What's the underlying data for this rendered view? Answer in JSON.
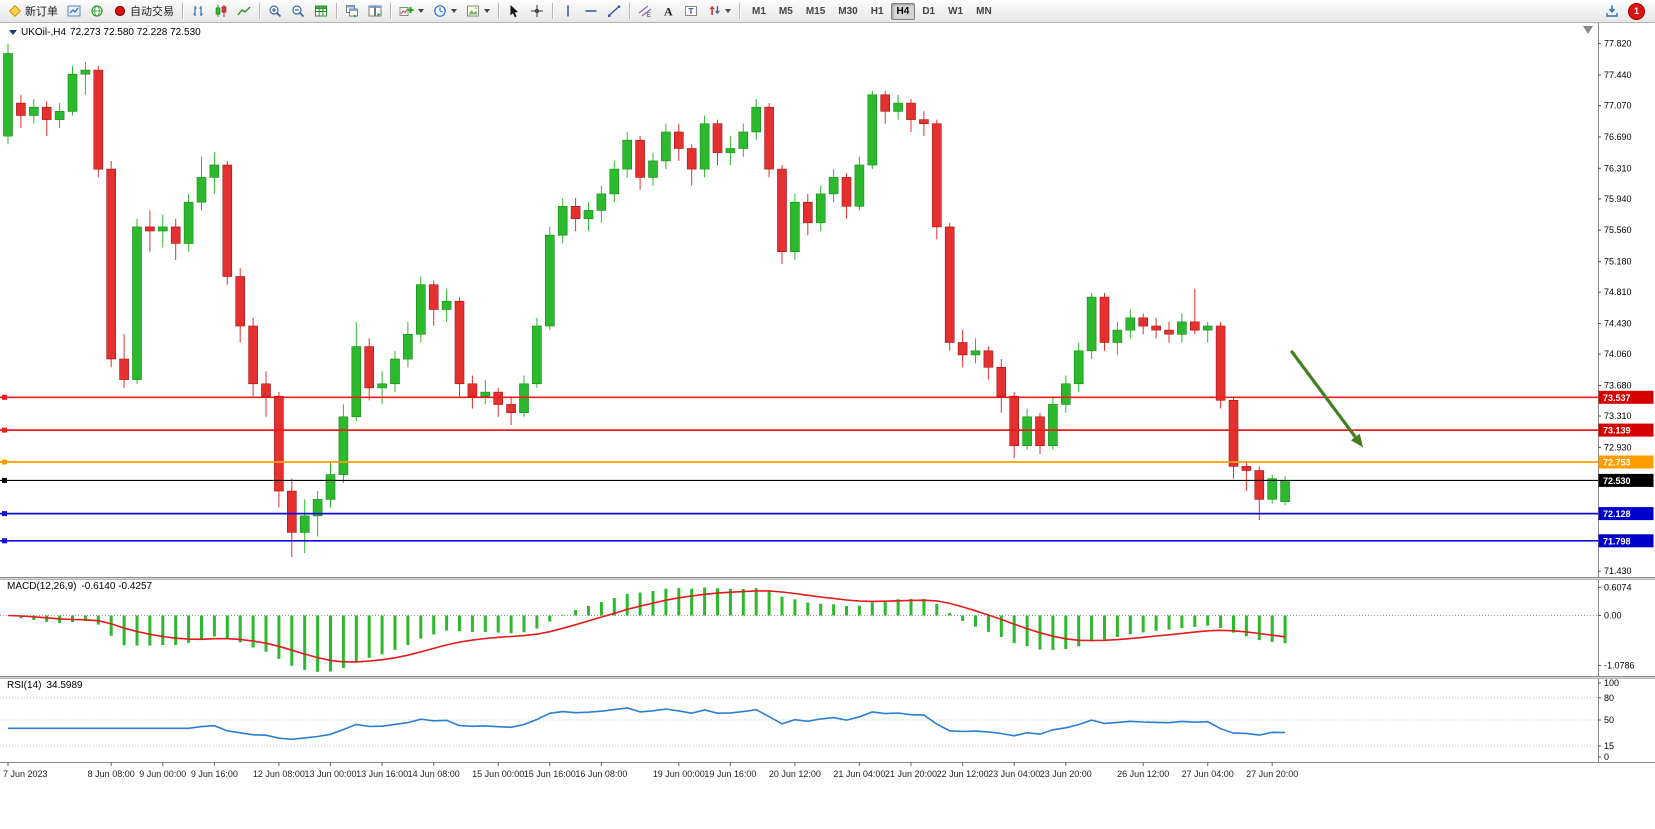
{
  "toolbar": {
    "new_order": "新订单",
    "autotrade": "自动交易",
    "timeframes": [
      "M1",
      "M5",
      "M15",
      "M30",
      "H1",
      "H4",
      "D1",
      "W1",
      "MN"
    ],
    "active_timeframe": "H4",
    "notification_count": "1"
  },
  "chart": {
    "symbol_title": "UKOil-,H4",
    "ohlc_text": "72.273 72.580 72.228 72.530",
    "macd_label": "MACD(12,26,9)",
    "macd_values": "-0.6140 -0.4257",
    "rsi_label": "RSI(14)",
    "rsi_value": "34.5989"
  },
  "chart_data": {
    "type": "candlestick",
    "symbol": "UKOil-",
    "timeframe": "H4",
    "current_bar": {
      "open": 72.273,
      "high": 72.58,
      "low": 72.228,
      "close": 72.53
    },
    "ylim": [
      71.36,
      78.07
    ],
    "y_ticks": [
      "77.820",
      "77.440",
      "77.070",
      "76.690",
      "76.310",
      "75.940",
      "75.560",
      "75.180",
      "74.810",
      "74.430",
      "74.060",
      "73.680",
      "73.310",
      "72.930",
      "71.430"
    ],
    "candles": [
      [
        76.7,
        77.82,
        76.6,
        77.7
      ],
      [
        77.1,
        77.2,
        76.8,
        76.95
      ],
      [
        76.95,
        77.15,
        76.85,
        77.05
      ],
      [
        77.05,
        77.12,
        76.7,
        76.9
      ],
      [
        76.9,
        77.1,
        76.8,
        77.0
      ],
      [
        77.0,
        77.55,
        76.95,
        77.45
      ],
      [
        77.45,
        77.6,
        77.2,
        77.5
      ],
      [
        77.5,
        77.55,
        76.2,
        76.3
      ],
      [
        76.3,
        76.4,
        73.9,
        74.0
      ],
      [
        74.0,
        74.3,
        73.65,
        73.75
      ],
      [
        73.75,
        75.7,
        73.7,
        75.6
      ],
      [
        75.6,
        75.8,
        75.3,
        75.55
      ],
      [
        75.55,
        75.75,
        75.35,
        75.6
      ],
      [
        75.6,
        75.7,
        75.2,
        75.4
      ],
      [
        75.4,
        76.0,
        75.3,
        75.9
      ],
      [
        75.9,
        76.45,
        75.8,
        76.2
      ],
      [
        76.2,
        76.5,
        76.0,
        76.35
      ],
      [
        76.35,
        76.4,
        74.9,
        75.0
      ],
      [
        75.0,
        75.1,
        74.2,
        74.4
      ],
      [
        74.4,
        74.5,
        73.55,
        73.7
      ],
      [
        73.7,
        73.85,
        73.3,
        73.55
      ],
      [
        73.55,
        73.6,
        72.2,
        72.4
      ],
      [
        72.4,
        72.55,
        71.6,
        71.9
      ],
      [
        71.9,
        72.3,
        71.65,
        72.1
      ],
      [
        72.1,
        72.4,
        71.85,
        72.3
      ],
      [
        72.3,
        72.75,
        72.2,
        72.6
      ],
      [
        72.6,
        73.45,
        72.5,
        73.3
      ],
      [
        73.3,
        74.45,
        73.25,
        74.15
      ],
      [
        74.15,
        74.25,
        73.5,
        73.65
      ],
      [
        73.65,
        73.85,
        73.45,
        73.7
      ],
      [
        73.7,
        74.1,
        73.6,
        74.0
      ],
      [
        74.0,
        74.45,
        73.9,
        74.3
      ],
      [
        74.3,
        75.0,
        74.2,
        74.9
      ],
      [
        74.9,
        74.95,
        74.4,
        74.6
      ],
      [
        74.6,
        74.85,
        74.45,
        74.7
      ],
      [
        74.7,
        74.75,
        73.55,
        73.7
      ],
      [
        73.7,
        73.8,
        73.4,
        73.55
      ],
      [
        73.55,
        73.75,
        73.45,
        73.6
      ],
      [
        73.6,
        73.65,
        73.3,
        73.45
      ],
      [
        73.45,
        73.55,
        73.2,
        73.35
      ],
      [
        73.35,
        73.8,
        73.3,
        73.7
      ],
      [
        73.7,
        74.5,
        73.65,
        74.4
      ],
      [
        74.4,
        75.6,
        74.35,
        75.5
      ],
      [
        75.5,
        75.95,
        75.4,
        75.85
      ],
      [
        75.85,
        75.95,
        75.55,
        75.7
      ],
      [
        75.7,
        75.9,
        75.55,
        75.8
      ],
      [
        75.8,
        76.1,
        75.65,
        76.0
      ],
      [
        76.0,
        76.4,
        75.9,
        76.3
      ],
      [
        76.3,
        76.75,
        76.2,
        76.65
      ],
      [
        76.65,
        76.7,
        76.05,
        76.2
      ],
      [
        76.2,
        76.5,
        76.1,
        76.4
      ],
      [
        76.4,
        76.85,
        76.3,
        76.75
      ],
      [
        76.75,
        76.85,
        76.4,
        76.55
      ],
      [
        76.55,
        76.6,
        76.1,
        76.3
      ],
      [
        76.3,
        76.95,
        76.2,
        76.85
      ],
      [
        76.85,
        76.9,
        76.35,
        76.5
      ],
      [
        76.5,
        76.7,
        76.35,
        76.55
      ],
      [
        76.55,
        76.85,
        76.45,
        76.75
      ],
      [
        76.75,
        77.15,
        76.65,
        77.05
      ],
      [
        77.05,
        77.1,
        76.2,
        76.3
      ],
      [
        76.3,
        76.35,
        75.15,
        75.3
      ],
      [
        75.3,
        76.0,
        75.2,
        75.9
      ],
      [
        75.9,
        76.0,
        75.5,
        75.65
      ],
      [
        75.65,
        76.1,
        75.55,
        76.0
      ],
      [
        76.0,
        76.3,
        75.9,
        76.2
      ],
      [
        76.2,
        76.25,
        75.7,
        75.85
      ],
      [
        75.85,
        76.45,
        75.8,
        76.35
      ],
      [
        76.35,
        77.25,
        76.3,
        77.2
      ],
      [
        77.2,
        77.25,
        76.85,
        77.0
      ],
      [
        77.0,
        77.2,
        76.9,
        77.1
      ],
      [
        77.1,
        77.15,
        76.75,
        76.9
      ],
      [
        76.9,
        77.0,
        76.7,
        76.85
      ],
      [
        76.85,
        76.9,
        75.45,
        75.6
      ],
      [
        75.6,
        75.65,
        74.1,
        74.2
      ],
      [
        74.2,
        74.35,
        73.9,
        74.05
      ],
      [
        74.05,
        74.25,
        73.95,
        74.1
      ],
      [
        74.1,
        74.15,
        73.75,
        73.9
      ],
      [
        73.9,
        74.0,
        73.35,
        73.55
      ],
      [
        73.55,
        73.6,
        72.8,
        72.95
      ],
      [
        72.95,
        73.4,
        72.9,
        73.3
      ],
      [
        73.3,
        73.35,
        72.85,
        72.95
      ],
      [
        72.95,
        73.55,
        72.9,
        73.45
      ],
      [
        73.45,
        73.8,
        73.35,
        73.7
      ],
      [
        73.7,
        74.2,
        73.6,
        74.1
      ],
      [
        74.1,
        74.8,
        74.0,
        74.75
      ],
      [
        74.75,
        74.8,
        74.1,
        74.2
      ],
      [
        74.2,
        74.45,
        74.05,
        74.35
      ],
      [
        74.35,
        74.6,
        74.25,
        74.5
      ],
      [
        74.5,
        74.55,
        74.3,
        74.4
      ],
      [
        74.4,
        74.5,
        74.25,
        74.35
      ],
      [
        74.35,
        74.45,
        74.2,
        74.3
      ],
      [
        74.3,
        74.55,
        74.2,
        74.45
      ],
      [
        74.45,
        74.85,
        74.3,
        74.35
      ],
      [
        74.35,
        74.45,
        74.2,
        74.4
      ],
      [
        74.4,
        74.45,
        73.4,
        73.5
      ],
      [
        73.5,
        73.55,
        72.55,
        72.7
      ],
      [
        72.7,
        72.75,
        72.4,
        72.65
      ],
      [
        72.65,
        72.7,
        72.05,
        72.3
      ],
      [
        72.3,
        72.6,
        72.25,
        72.55
      ],
      [
        72.273,
        72.58,
        72.228,
        72.53
      ]
    ],
    "x_labels": [
      {
        "i": 0,
        "t": "7 Jun 2023"
      },
      {
        "i": 8,
        "t": "8 Jun 08:00"
      },
      {
        "i": 12,
        "t": "9 Jun 00:00"
      },
      {
        "i": 16,
        "t": "9 Jun 16:00"
      },
      {
        "i": 21,
        "t": "12 Jun 08:00"
      },
      {
        "i": 25,
        "t": "13 Jun 00:00"
      },
      {
        "i": 29,
        "t": "13 Jun 16:00"
      },
      {
        "i": 33,
        "t": "14 Jun 08:00"
      },
      {
        "i": 38,
        "t": "15 Jun 00:00"
      },
      {
        "i": 42,
        "t": "15 Jun 16:00"
      },
      {
        "i": 46,
        "t": "16 Jun 08:00"
      },
      {
        "i": 52,
        "t": "19 Jun 00:00"
      },
      {
        "i": 56,
        "t": "19 Jun 16:00"
      },
      {
        "i": 61,
        "t": "20 Jun 12:00"
      },
      {
        "i": 66,
        "t": "21 Jun 04:00"
      },
      {
        "i": 70,
        "t": "21 Jun 20:00"
      },
      {
        "i": 74,
        "t": "22 Jun 12:00"
      },
      {
        "i": 78,
        "t": "23 Jun 04:00"
      },
      {
        "i": 82,
        "t": "23 Jun 20:00"
      },
      {
        "i": 88,
        "t": "26 Jun 12:00"
      },
      {
        "i": 93,
        "t": "27 Jun 04:00"
      },
      {
        "i": 98,
        "t": "27 Jun 20:00"
      }
    ],
    "hlines": [
      {
        "price": 73.537,
        "label": "73.537",
        "color": "#ee1c1c",
        "tag_bg": "#d40000"
      },
      {
        "price": 73.139,
        "label": "73.139",
        "color": "#ee1c1c",
        "tag_bg": "#d40000"
      },
      {
        "price": 72.753,
        "label": "72.753",
        "color": "#ff9c00",
        "tag_bg": "#ff9c00"
      },
      {
        "price": 72.53,
        "label": "72.530",
        "color": "#000000",
        "tag_bg": "#000000",
        "style": "current"
      },
      {
        "price": 72.128,
        "label": "72.128",
        "color": "#0d0dd6",
        "tag_bg": "#0000cc"
      },
      {
        "price": 71.798,
        "label": "71.798",
        "color": "#0d0dd6",
        "tag_bg": "#0000cc"
      }
    ],
    "arrow": {
      "x1": 0.808,
      "p1": 74.1,
      "x2": 0.853,
      "p2": 72.93,
      "color": "#447d21",
      "width": 3.2
    },
    "macd": {
      "fast": 12,
      "slow": 26,
      "signal": 9,
      "ticks": [
        "0.6074",
        "0.00",
        "-1.0786"
      ],
      "ylim": [
        -1.2,
        0.68
      ],
      "hist_color": "#2db92d",
      "signal_color": "#e51b1b"
    },
    "rsi": {
      "period": 14,
      "ticks": [
        "100",
        "80",
        "50",
        "15",
        "0"
      ],
      "levels": [
        80,
        50,
        15
      ],
      "ylim": [
        0,
        100
      ],
      "color": "#2a7fd4"
    },
    "colors": {
      "up": "#2db92d",
      "down": "#e53030",
      "axis_line": "#8a8a8a",
      "axis_text": "#000000",
      "grid_dotted": "#c0c0c0",
      "bg": "#ffffff"
    }
  }
}
